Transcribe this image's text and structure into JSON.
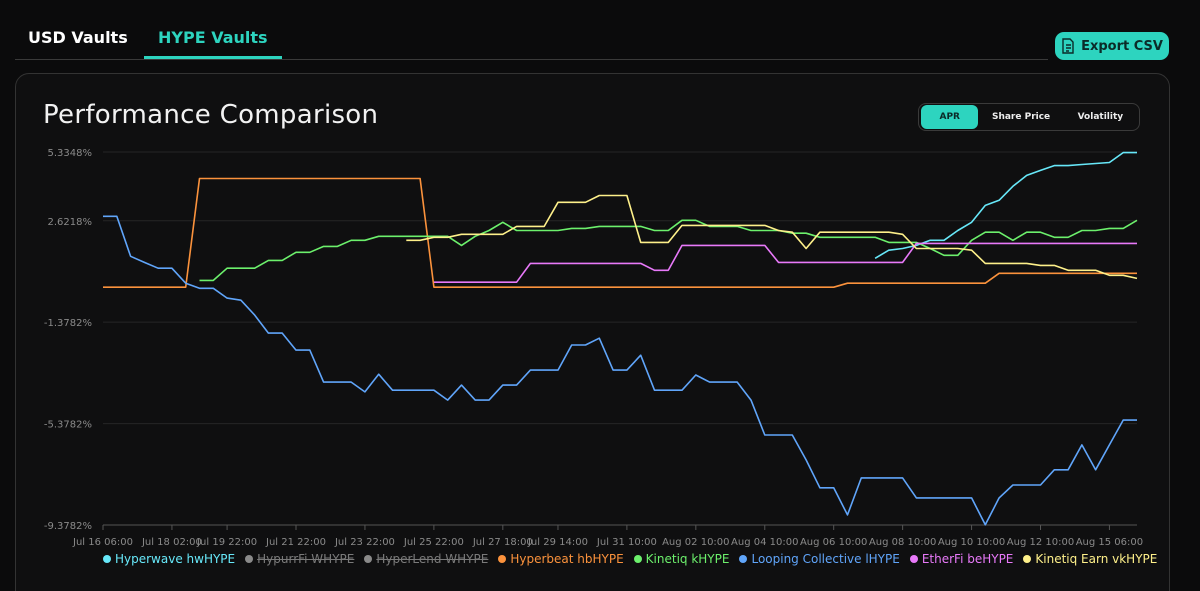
{
  "tabs": [
    {
      "label": "USD Vaults",
      "active": false
    },
    {
      "label": "HYPE Vaults",
      "active": true
    }
  ],
  "export_button": "Export CSV",
  "metric_toggle": [
    {
      "label": "APR",
      "active": true
    },
    {
      "label": "Share Price",
      "active": false
    },
    {
      "label": "Volatility",
      "active": false
    }
  ],
  "chart_data": {
    "type": "line",
    "title": "Performance Comparison",
    "grid": true,
    "ylim": [
      -9.3782,
      5.3348
    ],
    "yticks": [
      {
        "value": -9.3782,
        "label": "-9.3782%"
      },
      {
        "value": -5.3782,
        "label": "-5.3782%"
      },
      {
        "value": -1.3782,
        "label": "-1.3782%"
      },
      {
        "value": 2.6218,
        "label": "2.6218%"
      },
      {
        "value": 5.3348,
        "label": "5.3348%"
      }
    ],
    "categories": [
      "Jul 16 06:00",
      null,
      null,
      null,
      null,
      "Jul 18 02:00",
      null,
      null,
      null,
      "Jul 19 22:00",
      null,
      null,
      null,
      null,
      "Jul 21 22:00",
      null,
      null,
      null,
      null,
      "Jul 23 22:00",
      null,
      null,
      null,
      null,
      "Jul 25 22:00",
      null,
      null,
      null,
      null,
      "Jul 27 18:00",
      null,
      null,
      null,
      "Jul 29 14:00",
      null,
      null,
      null,
      null,
      "Jul 31 10:00",
      null,
      null,
      null,
      null,
      "Aug 02 10:00",
      null,
      null,
      null,
      null,
      "Aug 04 10:00",
      null,
      null,
      null,
      null,
      "Aug 06 10:00",
      null,
      null,
      null,
      null,
      "Aug 08 10:00",
      null,
      null,
      null,
      null,
      "Aug 10 10:00",
      null,
      null,
      null,
      null,
      "Aug 12 10:00",
      null,
      null,
      null,
      null,
      "Aug 15 06:00",
      null,
      null
    ],
    "series": [
      {
        "name": "Hyperwave hwHYPE",
        "color": "#67e8f9",
        "values": [
          null,
          null,
          null,
          null,
          null,
          null,
          null,
          null,
          null,
          null,
          null,
          null,
          null,
          null,
          null,
          null,
          null,
          null,
          null,
          null,
          null,
          null,
          null,
          null,
          null,
          null,
          null,
          null,
          null,
          null,
          null,
          null,
          null,
          null,
          null,
          null,
          null,
          null,
          null,
          null,
          null,
          null,
          null,
          null,
          null,
          null,
          null,
          null,
          null,
          null,
          null,
          null,
          null,
          null,
          null,
          null,
          1.14,
          1.46,
          1.53,
          1.65,
          1.85,
          1.85,
          2.24,
          2.56,
          3.23,
          3.43,
          3.98,
          4.41,
          4.61,
          4.8,
          4.8,
          4.84,
          4.88,
          4.92,
          5.31,
          5.31
        ]
      },
      {
        "name": "HypurrFi WHYPE",
        "color": "#8a8a8a",
        "hidden": true,
        "values": [
          null,
          null,
          null,
          null,
          null,
          null,
          null,
          null,
          null,
          null,
          null,
          null,
          null,
          null,
          null,
          null,
          null,
          null,
          null,
          null,
          null,
          null,
          null,
          null,
          null,
          null,
          null,
          null,
          null,
          null,
          null,
          null,
          null,
          null,
          null,
          null,
          null,
          null,
          null,
          null,
          null,
          null,
          null,
          null,
          null,
          null,
          null,
          null,
          null,
          null,
          null,
          null,
          null,
          null,
          null,
          null,
          null,
          null,
          null,
          null,
          null,
          null,
          null,
          null,
          null,
          null,
          null,
          null,
          null,
          null,
          null,
          null,
          null,
          null,
          null,
          null
        ]
      },
      {
        "name": "HyperLend WHYPE",
        "color": "#8a8a8a",
        "hidden": true,
        "values": [
          null,
          null,
          null,
          null,
          null,
          null,
          null,
          null,
          null,
          null,
          null,
          null,
          null,
          null,
          null,
          null,
          null,
          null,
          null,
          null,
          null,
          null,
          null,
          null,
          null,
          null,
          null,
          null,
          null,
          null,
          null,
          null,
          null,
          null,
          null,
          null,
          null,
          null,
          null,
          null,
          null,
          null,
          null,
          null,
          null,
          null,
          null,
          null,
          null,
          null,
          null,
          null,
          null,
          null,
          null,
          null,
          null,
          null,
          null,
          null,
          null,
          null,
          null,
          null,
          null,
          null,
          null,
          null,
          null,
          null,
          null,
          null,
          null,
          null,
          null,
          null
        ]
      },
      {
        "name": "Hyperbeat hbHYPE",
        "color": "#fb923c",
        "values": [
          0,
          0,
          0,
          0,
          0,
          0,
          0,
          4.29,
          4.29,
          4.29,
          4.29,
          4.29,
          4.29,
          4.29,
          4.29,
          4.29,
          4.29,
          4.29,
          4.29,
          4.29,
          4.29,
          4.29,
          4.29,
          4.29,
          0,
          0,
          0,
          0,
          0,
          0,
          0,
          0,
          0,
          0,
          0,
          0,
          0,
          0,
          0,
          0,
          0,
          0,
          0,
          0,
          0,
          0,
          0,
          0,
          0,
          0,
          0,
          0,
          0,
          0,
          0.16,
          0.16,
          0.16,
          0.16,
          0.16,
          0.16,
          0.16,
          0.16,
          0.16,
          0.16,
          0.16,
          0.55,
          0.55,
          0.55,
          0.55,
          0.55,
          0.55,
          0.55,
          0.55,
          0.55,
          0.55,
          0.55
        ]
      },
      {
        "name": "Kinetiq kHYPE",
        "color": "#6cf06c",
        "values": [
          null,
          null,
          null,
          null,
          null,
          null,
          null,
          0.27,
          0.27,
          0.75,
          0.75,
          0.75,
          1.06,
          1.06,
          1.38,
          1.38,
          1.61,
          1.61,
          1.85,
          1.85,
          2.01,
          2.01,
          2.01,
          2.01,
          2.01,
          2.01,
          1.65,
          2.01,
          2.24,
          2.56,
          2.24,
          2.24,
          2.24,
          2.24,
          2.32,
          2.32,
          2.4,
          2.4,
          2.4,
          2.4,
          2.24,
          2.24,
          2.64,
          2.64,
          2.4,
          2.4,
          2.4,
          2.24,
          2.24,
          2.24,
          2.13,
          2.13,
          1.97,
          1.97,
          1.97,
          1.97,
          1.97,
          1.77,
          1.77,
          1.77,
          1.53,
          1.26,
          1.26,
          1.85,
          2.17,
          2.17,
          1.85,
          2.17,
          2.17,
          1.97,
          1.97,
          2.24,
          2.24,
          2.32,
          2.32,
          2.64
        ]
      },
      {
        "name": "Looping Collective lHYPE",
        "color": "#60a5fa",
        "values": [
          2.8,
          2.8,
          1.22,
          0.98,
          0.75,
          0.75,
          0.16,
          -0.04,
          -0.04,
          -0.43,
          -0.51,
          -1.1,
          -1.81,
          -1.81,
          -2.48,
          -2.48,
          -3.74,
          -3.74,
          -3.74,
          -4.13,
          -3.43,
          -4.06,
          -4.06,
          -4.06,
          -4.06,
          -4.45,
          -3.86,
          -4.45,
          -4.45,
          -3.86,
          -3.86,
          -3.27,
          -3.27,
          -3.27,
          -2.28,
          -2.28,
          -2.01,
          -3.27,
          -3.27,
          -2.68,
          -4.06,
          -4.06,
          -4.06,
          -3.46,
          -3.74,
          -3.74,
          -3.74,
          -4.45,
          -5.83,
          -5.83,
          -5.83,
          -6.81,
          -7.91,
          -7.91,
          -8.98,
          -7.52,
          -7.52,
          -7.52,
          -7.52,
          -8.31,
          -8.31,
          -8.31,
          -8.31,
          -8.31,
          -9.37,
          -8.31,
          -7.8,
          -7.8,
          -7.8,
          -7.2,
          -7.2,
          -6.22,
          -7.2,
          -6.22,
          -5.24,
          -5.24
        ]
      },
      {
        "name": "EtherFi beHYPE",
        "color": "#e879f9",
        "values": [
          null,
          null,
          null,
          null,
          null,
          null,
          null,
          null,
          null,
          null,
          null,
          null,
          null,
          null,
          null,
          null,
          null,
          null,
          null,
          null,
          null,
          null,
          null,
          null,
          0.2,
          0.2,
          0.2,
          0.2,
          0.2,
          0.2,
          0.2,
          0.94,
          0.94,
          0.94,
          0.94,
          0.94,
          0.94,
          0.94,
          0.94,
          0.94,
          0.67,
          0.67,
          1.65,
          1.65,
          1.65,
          1.65,
          1.65,
          1.65,
          1.65,
          0.98,
          0.98,
          0.98,
          0.98,
          0.98,
          0.98,
          0.98,
          0.98,
          0.98,
          0.98,
          1.73,
          1.73,
          1.73,
          1.73,
          1.73,
          1.73,
          1.73,
          1.73,
          1.73,
          1.73,
          1.73,
          1.73,
          1.73,
          1.73,
          1.73,
          1.73,
          1.73
        ]
      },
      {
        "name": "Kinetiq Earn vkHYPE",
        "color": "#fef08a",
        "values": [
          null,
          null,
          null,
          null,
          null,
          null,
          null,
          null,
          null,
          null,
          null,
          null,
          null,
          null,
          null,
          null,
          null,
          null,
          null,
          null,
          null,
          null,
          1.85,
          1.85,
          1.97,
          1.97,
          2.09,
          2.09,
          2.09,
          2.09,
          2.4,
          2.4,
          2.4,
          3.35,
          3.35,
          3.35,
          3.62,
          3.62,
          3.62,
          1.77,
          1.77,
          1.77,
          2.44,
          2.44,
          2.44,
          2.44,
          2.44,
          2.44,
          2.44,
          2.24,
          2.17,
          1.53,
          2.17,
          2.17,
          2.17,
          2.17,
          2.17,
          2.17,
          2.09,
          1.53,
          1.53,
          1.53,
          1.53,
          1.46,
          0.94,
          0.94,
          0.94,
          0.94,
          0.86,
          0.86,
          0.67,
          0.67,
          0.67,
          0.47,
          0.47,
          0.35
        ]
      }
    ]
  }
}
